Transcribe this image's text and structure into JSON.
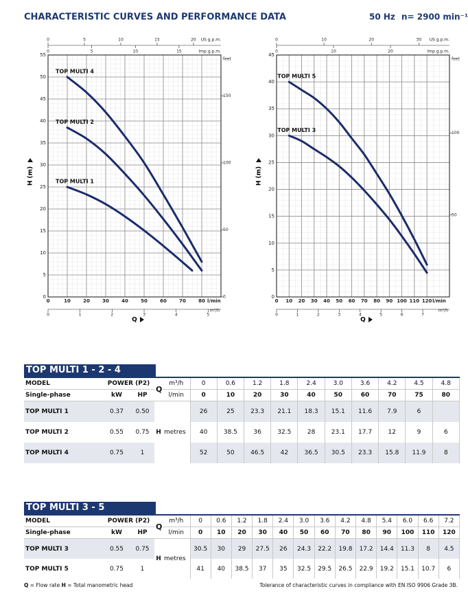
{
  "header": {
    "title": "CHARACTERISTIC CURVES AND PERFORMANCE DATA",
    "frequency": "50 Hz",
    "speed": "n= 2900 min⁻¹"
  },
  "chart_data": [
    {
      "type": "line",
      "ylabel": "H (m)",
      "xlabel": "Q",
      "x_unit": "l/min",
      "x": [
        10,
        20,
        30,
        40,
        50,
        60,
        70,
        75,
        80
      ],
      "xlim": [
        0,
        90
      ],
      "xticks": [
        0,
        10,
        20,
        30,
        40,
        50,
        60,
        70,
        80
      ],
      "ylim": [
        0,
        55
      ],
      "yticks": [
        0,
        5,
        10,
        15,
        20,
        25,
        30,
        35,
        40,
        45,
        50,
        55
      ],
      "y2label": "feet",
      "y2lim": [
        0,
        180.45
      ],
      "y2ticks": [
        0,
        50,
        100,
        150
      ],
      "top_axes": [
        {
          "label": "US g.p.m.",
          "lim": [
            0,
            23.78
          ],
          "ticks": [
            0,
            5,
            10,
            15,
            20
          ]
        },
        {
          "label": "Imp g.p.m.",
          "lim": [
            0,
            19.8
          ],
          "ticks": [
            0,
            5,
            10,
            15
          ]
        }
      ],
      "x2label": "m³/h",
      "x2lim": [
        0,
        5.4
      ],
      "x2ticks": [
        0,
        1,
        2,
        3,
        4,
        5
      ],
      "grid": true,
      "series": [
        {
          "name": "TOP MULTI 4",
          "color": "#1b2c6b",
          "values": [
            50,
            46.5,
            42,
            36.5,
            30.5,
            23.3,
            15.8,
            11.9,
            8
          ]
        },
        {
          "name": "TOP MULTI 2",
          "color": "#1b2c6b",
          "values": [
            38.5,
            36,
            32.5,
            28,
            23.1,
            17.7,
            12,
            9,
            6
          ]
        },
        {
          "name": "TOP MULTI 1",
          "color": "#1b2c6b",
          "values": [
            25,
            23.3,
            21.1,
            18.3,
            15.1,
            11.6,
            7.9,
            6,
            null
          ]
        }
      ]
    },
    {
      "type": "line",
      "ylabel": "H (m)",
      "xlabel": "Q",
      "x_unit": "l/min",
      "x": [
        10,
        20,
        30,
        40,
        50,
        60,
        70,
        80,
        90,
        100,
        110,
        120
      ],
      "xlim": [
        0,
        138
      ],
      "xticks": [
        0,
        10,
        20,
        30,
        40,
        50,
        60,
        70,
        80,
        90,
        100,
        110,
        120
      ],
      "ylim": [
        0,
        45
      ],
      "yticks": [
        0,
        5,
        10,
        15,
        20,
        25,
        30,
        35,
        40,
        45
      ],
      "y2label": "feet",
      "y2lim": [
        0,
        147.64
      ],
      "y2ticks": [
        50,
        100
      ],
      "top_axes": [
        {
          "label": "US g.p.m.",
          "lim": [
            0,
            36.46
          ],
          "ticks": [
            0,
            10,
            20,
            30
          ]
        },
        {
          "label": "Imp g.p.m.",
          "lim": [
            0,
            30.36
          ],
          "ticks": [
            0,
            10,
            20
          ]
        }
      ],
      "x2label": "m³/h",
      "x2lim": [
        0,
        8.28
      ],
      "x2ticks": [
        0,
        1,
        2,
        3,
        4,
        5,
        6,
        7
      ],
      "grid": true,
      "series": [
        {
          "name": "TOP MULTI 5",
          "color": "#1b2c6b",
          "values": [
            40,
            38.5,
            37,
            35,
            32.5,
            29.5,
            26.5,
            22.9,
            19.2,
            15.1,
            10.7,
            6
          ]
        },
        {
          "name": "TOP MULTI 3",
          "color": "#1b2c6b",
          "values": [
            30,
            29,
            27.5,
            26,
            24.3,
            22.2,
            19.8,
            17.2,
            14.4,
            11.3,
            8,
            4.5
          ]
        }
      ]
    }
  ],
  "tables": [
    {
      "title": "TOP MULTI 1 - 2 - 4",
      "model": "MODEL",
      "single_phase": "Single-phase",
      "power": "POWER (P2)",
      "kw": "kW",
      "hp": "HP",
      "q": "Q",
      "m3h_unit": "m³/h",
      "lmin_unit": "l/min",
      "h": "H",
      "metres": "metres",
      "m3h": [
        "0",
        "0.6",
        "1.2",
        "1.8",
        "2.4",
        "3.0",
        "3.6",
        "4.2",
        "4.5",
        "4.8"
      ],
      "lmin": [
        "0",
        "10",
        "20",
        "30",
        "40",
        "50",
        "60",
        "70",
        "75",
        "80"
      ],
      "rows": [
        {
          "model": "TOP MULTI 1",
          "kw": "0.37",
          "hp": "0.50",
          "values": [
            "26",
            "25",
            "23.3",
            "21.1",
            "18.3",
            "15.1",
            "11.6",
            "7.9",
            "6",
            null
          ]
        },
        {
          "model": "TOP MULTI 2",
          "kw": "0.55",
          "hp": "0.75",
          "values": [
            "40",
            "38.5",
            "36",
            "32.5",
            "28",
            "23.1",
            "17.7",
            "12",
            "9",
            "6"
          ]
        },
        {
          "model": "TOP MULTI 4",
          "kw": "0.75",
          "hp": "1",
          "values": [
            "52",
            "50",
            "46.5",
            "42",
            "36.5",
            "30.5",
            "23.3",
            "15.8",
            "11.9",
            "8"
          ]
        }
      ]
    },
    {
      "title": "TOP MULTI 3 - 5",
      "model": "MODEL",
      "single_phase": "Single-phase",
      "power": "POWER (P2)",
      "kw": "kW",
      "hp": "HP",
      "q": "Q",
      "m3h_unit": "m³/h",
      "lmin_unit": "l/min",
      "h": "H",
      "metres": "metres",
      "m3h": [
        "0",
        "0.6",
        "1.2",
        "1.8",
        "2.4",
        "3.0",
        "3.6",
        "4.2",
        "4.8",
        "5.4",
        "6.0",
        "6.6",
        "7.2"
      ],
      "lmin": [
        "0",
        "10",
        "20",
        "30",
        "40",
        "50",
        "60",
        "70",
        "80",
        "90",
        "100",
        "110",
        "120"
      ],
      "rows": [
        {
          "model": "TOP MULTI 3",
          "kw": "0.55",
          "hp": "0.75",
          "values": [
            "30.5",
            "30",
            "29",
            "27.5",
            "26",
            "24.3",
            "22.2",
            "19.8",
            "17.2",
            "14.4",
            "11.3",
            "8",
            "4.5"
          ]
        },
        {
          "model": "TOP MULTI 5",
          "kw": "0.75",
          "hp": "1",
          "values": [
            "41",
            "40",
            "38.5",
            "37",
            "35",
            "32.5",
            "29.5",
            "26.5",
            "22.9",
            "19.2",
            "15.1",
            "10.7",
            "6"
          ]
        }
      ]
    }
  ],
  "footer": {
    "q": "Q",
    "q_text": "= Flow rate",
    "h": "H",
    "h_text": "= Total manometric head",
    "tolerance": "Tolerance of characteristic curves in compliance with EN ISO 9906 Grade 3B."
  }
}
